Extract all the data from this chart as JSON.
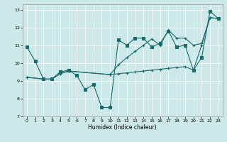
{
  "title": "",
  "xlabel": "Humidex (Indice chaleur)",
  "ylabel": "",
  "bg_color": "#cce8e8",
  "line_color": "#1a6b6b",
  "grid_color": "#ffffff",
  "xlim": [
    -0.5,
    23.5
  ],
  "ylim": [
    7,
    13.3
  ],
  "yticks": [
    7,
    8,
    9,
    10,
    11,
    12,
    13
  ],
  "xticks": [
    0,
    1,
    2,
    3,
    4,
    5,
    6,
    7,
    8,
    9,
    10,
    11,
    12,
    13,
    14,
    15,
    16,
    17,
    18,
    19,
    20,
    21,
    22,
    23
  ],
  "series": [
    {
      "x": [
        0,
        1,
        2,
        3,
        4,
        5,
        6,
        7,
        8,
        9,
        10,
        11,
        12,
        13,
        14,
        15,
        16,
        17,
        18,
        19,
        20,
        21,
        22,
        23
      ],
      "y": [
        10.9,
        10.1,
        9.1,
        9.1,
        9.5,
        9.6,
        9.3,
        8.5,
        8.8,
        7.5,
        7.5,
        11.3,
        11.0,
        11.4,
        11.4,
        10.9,
        11.1,
        11.8,
        10.9,
        11.0,
        9.6,
        10.3,
        12.9,
        12.5
      ],
      "marker": "s",
      "markersize": 2.5
    },
    {
      "x": [
        0,
        2,
        3,
        4,
        5,
        10,
        11,
        12,
        13,
        14,
        15,
        16,
        17,
        18,
        19,
        20,
        21,
        22,
        23
      ],
      "y": [
        9.2,
        9.1,
        9.1,
        9.4,
        9.55,
        9.35,
        9.4,
        9.45,
        9.5,
        9.55,
        9.6,
        9.65,
        9.7,
        9.75,
        9.8,
        9.6,
        11.0,
        12.55,
        12.5
      ],
      "marker": "+",
      "markersize": 3.5
    },
    {
      "x": [
        0,
        2,
        3,
        4,
        5,
        10,
        11,
        12,
        13,
        14,
        15,
        16,
        17,
        18,
        19,
        20,
        21,
        22,
        23
      ],
      "y": [
        9.2,
        9.1,
        9.1,
        9.4,
        9.55,
        9.35,
        9.9,
        10.3,
        10.65,
        11.0,
        11.35,
        11.0,
        11.85,
        11.4,
        11.4,
        11.0,
        11.1,
        12.55,
        12.5
      ],
      "marker": "+",
      "markersize": 3.5
    }
  ]
}
